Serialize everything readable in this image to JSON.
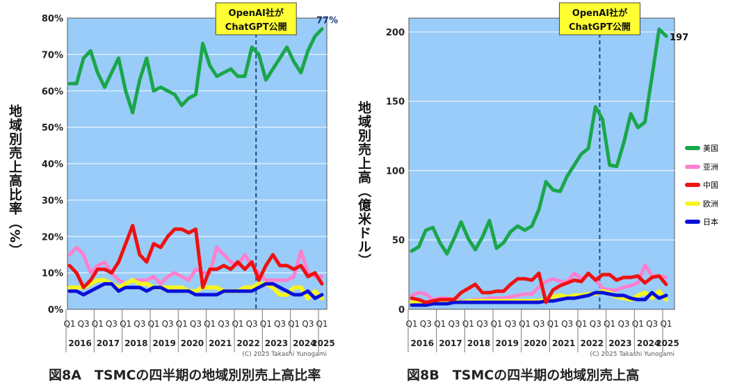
{
  "colors": {
    "plot_bg": "#99ccf8",
    "usa": "#1aa64a",
    "asia": "#ff7fcf",
    "china": "#ee1111",
    "europe": "#f5f520",
    "japan": "#0a10d8",
    "annotation_bg": "#ffff33"
  },
  "annotation": {
    "line1": "OpenAI社が",
    "line2": "ChatGPT公開"
  },
  "copyright": "(C) 2025 Takashi Yunogami",
  "legend": [
    "美国",
    "亚洲",
    "中国",
    "欧洲",
    "日本"
  ],
  "chart_data": [
    {
      "type": "line",
      "title": "図8A　TSMCの四半期の地域別別売上高比率",
      "ylabel": "地域別売上高比率（%）",
      "ylim": [
        0,
        80
      ],
      "yticks": [
        "0%",
        "10%",
        "20%",
        "30%",
        "40%",
        "50%",
        "60%",
        "70%",
        "80%"
      ],
      "x_quarter_labels": [
        "Q1",
        "Q3"
      ],
      "years": [
        "2016",
        "2017",
        "2018",
        "2019",
        "2020",
        "2021",
        "2022",
        "2023",
        "2024",
        "2025"
      ],
      "x_range": "2016Q1-2025Q1",
      "event_marker": "2022Q4",
      "end_label": "77%",
      "grid": true,
      "series": [
        {
          "name": "美国",
          "values": [
            62,
            62,
            69,
            71,
            65,
            61,
            65,
            69,
            60,
            54,
            63,
            69,
            60,
            61,
            60,
            59,
            56,
            58,
            59,
            73,
            67,
            64,
            65,
            66,
            64,
            64,
            72,
            70,
            63,
            66,
            69,
            72,
            68,
            65,
            71,
            75,
            77
          ]
        },
        {
          "name": "亚洲",
          "values": [
            15,
            17,
            15,
            10,
            12,
            13,
            10,
            8,
            7,
            8,
            8,
            8,
            9,
            7,
            9,
            10,
            9,
            8,
            11,
            10,
            10,
            17,
            15,
            13,
            12,
            15,
            12,
            10,
            8,
            8,
            8,
            8,
            9,
            16,
            10,
            9,
            9
          ]
        },
        {
          "name": "中国",
          "values": [
            12,
            10,
            6,
            8,
            11,
            11,
            10,
            13,
            18,
            23,
            15,
            13,
            18,
            17,
            20,
            22,
            22,
            21,
            22,
            6,
            11,
            11,
            12,
            11,
            13,
            11,
            13,
            8,
            12,
            15,
            12,
            12,
            11,
            12,
            9,
            10,
            7
          ]
        },
        {
          "name": "欧洲",
          "values": [
            6,
            6,
            6,
            7,
            8,
            8,
            7,
            6,
            7,
            8,
            7,
            7,
            6,
            6,
            6,
            6,
            6,
            5,
            5,
            6,
            6,
            6,
            5,
            5,
            5,
            6,
            6,
            7,
            7,
            6,
            4,
            4,
            6,
            6,
            3,
            5,
            3
          ]
        },
        {
          "name": "日本",
          "values": [
            5,
            5,
            4,
            5,
            6,
            7,
            7,
            5,
            6,
            6,
            6,
            5,
            6,
            6,
            5,
            5,
            5,
            5,
            4,
            4,
            4,
            4,
            5,
            5,
            5,
            5,
            5,
            6,
            7,
            7,
            6,
            5,
            4,
            4,
            5,
            3,
            4
          ]
        }
      ]
    },
    {
      "type": "line",
      "title": "図8B　TSMCの四半期の地域別売上高",
      "ylabel": "地域別売上高（億米ドル）",
      "ylim": [
        0,
        210
      ],
      "yticks": [
        "0",
        "50",
        "100",
        "150",
        "200"
      ],
      "x_quarter_labels": [
        "Q1",
        "Q3"
      ],
      "years": [
        "2016",
        "2017",
        "2018",
        "2019",
        "2020",
        "2021",
        "2022",
        "2023",
        "2024",
        "2025"
      ],
      "x_range": "2016Q1-2025Q1",
      "event_marker": "2022Q4",
      "end_label": "197",
      "grid": true,
      "legend_position": "right",
      "series": [
        {
          "name": "美国",
          "values": [
            42,
            45,
            57,
            59,
            48,
            40,
            51,
            63,
            51,
            43,
            52,
            64,
            44,
            48,
            56,
            60,
            57,
            60,
            72,
            92,
            86,
            85,
            96,
            104,
            112,
            116,
            146,
            137,
            104,
            103,
            120,
            141,
            131,
            135,
            168,
            202,
            197
          ]
        },
        {
          "name": "亚洲",
          "values": [
            10,
            12,
            11,
            7,
            8,
            8,
            7,
            6,
            6,
            7,
            7,
            8,
            8,
            8,
            9,
            10,
            11,
            11,
            16,
            20,
            22,
            20,
            20,
            26,
            22,
            25,
            22,
            15,
            14,
            14,
            16,
            17,
            19,
            32,
            24,
            24,
            23
          ]
        },
        {
          "name": "中国",
          "values": [
            8,
            7,
            5,
            6,
            7,
            7,
            7,
            12,
            15,
            18,
            12,
            12,
            13,
            13,
            18,
            22,
            22,
            21,
            26,
            5,
            14,
            17,
            19,
            21,
            20,
            26,
            21,
            25,
            25,
            21,
            23,
            23,
            24,
            19,
            23,
            24,
            18
          ]
        },
        {
          "name": "欧洲",
          "values": [
            5,
            5,
            5,
            5,
            6,
            6,
            6,
            5,
            6,
            6,
            6,
            6,
            6,
            6,
            6,
            6,
            6,
            6,
            6,
            7,
            9,
            10,
            9,
            10,
            10,
            11,
            11,
            13,
            12,
            9,
            8,
            7,
            10,
            12,
            8,
            13,
            7
          ]
        },
        {
          "name": "日本",
          "values": [
            3,
            3,
            3,
            4,
            4,
            4,
            5,
            5,
            5,
            5,
            5,
            5,
            5,
            5,
            5,
            5,
            5,
            5,
            5,
            6,
            6,
            7,
            8,
            8,
            9,
            10,
            12,
            12,
            11,
            10,
            10,
            8,
            7,
            7,
            12,
            8,
            10
          ]
        }
      ]
    }
  ]
}
